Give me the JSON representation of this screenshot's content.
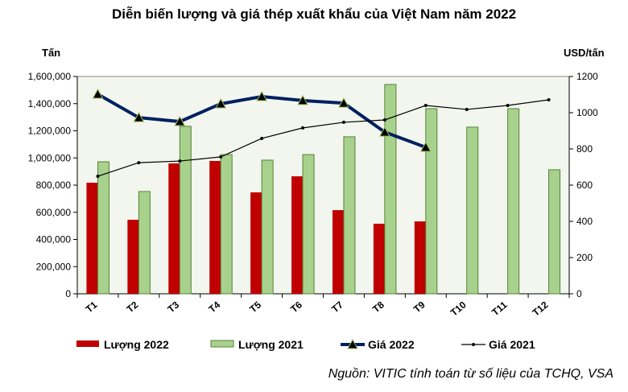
{
  "chart_data": {
    "type": "bar",
    "title": "Diễn biến lượng và giá thép xuất khẩu của Việt Nam năm 2022",
    "ylabel": "Tấn",
    "y2label": "USD/tấn",
    "ylim": [
      0,
      1600000
    ],
    "y2lim": [
      0,
      1200
    ],
    "yticks": [
      "0",
      "200,000",
      "400,000",
      "600,000",
      "800,000",
      "1,000,000",
      "1,200,000",
      "1,400,000",
      "1,600,000"
    ],
    "y2ticks": [
      "0",
      "200",
      "400",
      "600",
      "800",
      "1000",
      "1200"
    ],
    "categories": [
      "T1",
      "T2",
      "T3",
      "T4",
      "T5",
      "T6",
      "T7",
      "T8",
      "T9",
      "T10",
      "T11",
      "T12"
    ],
    "series": [
      {
        "name": "Lượng 2022",
        "kind": "bar",
        "axis": "left",
        "color": "#c00000",
        "values": [
          818000,
          545000,
          960000,
          978000,
          747000,
          865000,
          616000,
          516000,
          533000,
          null,
          null,
          null
        ]
      },
      {
        "name": "Lượng 2021",
        "kind": "bar",
        "axis": "left",
        "color": "#a9d18e",
        "values": [
          972000,
          753000,
          1233000,
          1025000,
          984000,
          1025000,
          1156000,
          1541000,
          1363000,
          1227000,
          1363000,
          913000
        ]
      },
      {
        "name": "Giá 2022",
        "kind": "line",
        "axis": "right",
        "color": "#002060",
        "values": [
          1102,
          973,
          951,
          1049,
          1089,
          1067,
          1053,
          893,
          809,
          null,
          null,
          null
        ]
      },
      {
        "name": "Giá 2021",
        "kind": "line",
        "axis": "right",
        "color": "#000000",
        "values": [
          649,
          724,
          733,
          756,
          858,
          916,
          947,
          960,
          1040,
          1018,
          1040,
          1071
        ]
      }
    ],
    "legend": "bottom"
  },
  "source": "Nguồn: VITIC tính toán từ số liệu của TCHQ, VSA"
}
